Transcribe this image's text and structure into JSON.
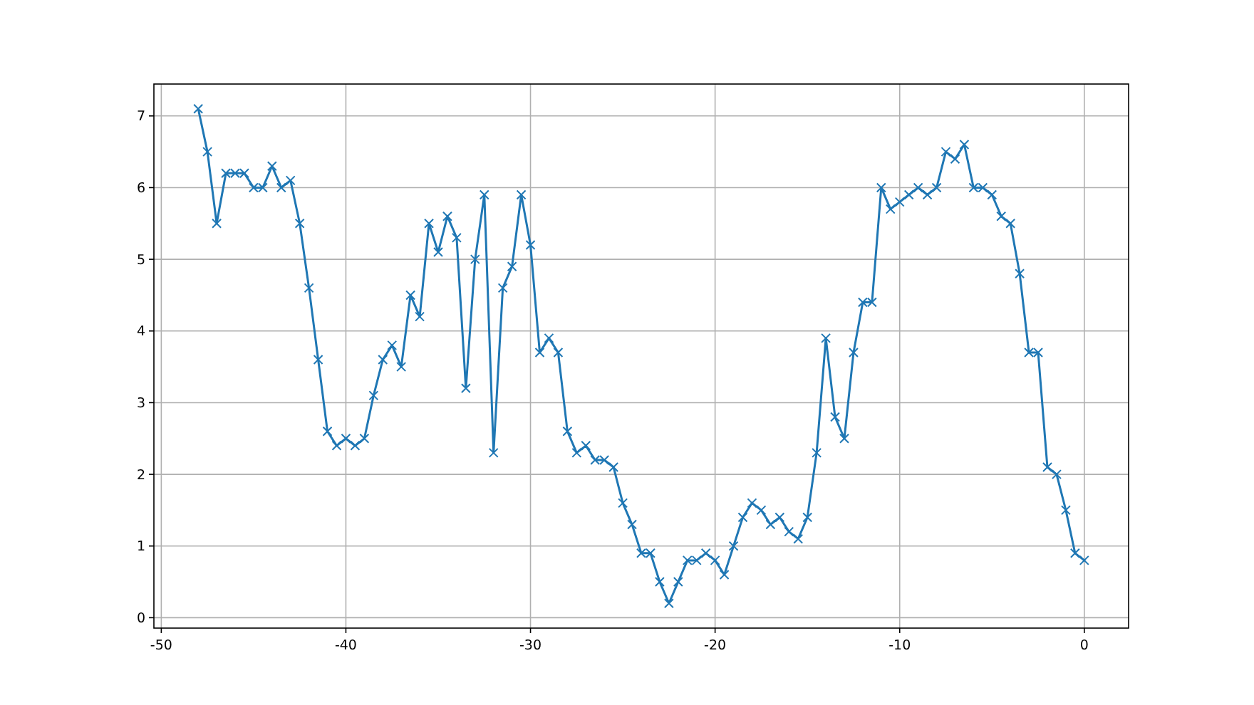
{
  "chart_data": {
    "type": "line",
    "x": [
      -48,
      -47.5,
      -47,
      -46.5,
      -46,
      -45.5,
      -45,
      -44.5,
      -44,
      -43.5,
      -43,
      -42.5,
      -42,
      -41.5,
      -41,
      -40.5,
      -40,
      -39.5,
      -39,
      -38.5,
      -38,
      -37.5,
      -37,
      -36.5,
      -36,
      -35.5,
      -35,
      -34.5,
      -34,
      -33.5,
      -33,
      -32.5,
      -32,
      -31.5,
      -31,
      -30.5,
      -30,
      -29.5,
      -29,
      -28.5,
      -28,
      -27.5,
      -27,
      -26.5,
      -26,
      -25.5,
      -25,
      -24.5,
      -24,
      -23.5,
      -23,
      -22.5,
      -22,
      -21.5,
      -21,
      -20.5,
      -20,
      -19.5,
      -19,
      -18.5,
      -18,
      -17.5,
      -17,
      -16.5,
      -16,
      -15.5,
      -15,
      -14.5,
      -14,
      -13.5,
      -13,
      -12.5,
      -12,
      -11.5,
      -11,
      -10.5,
      -10,
      -9.5,
      -9,
      -8.5,
      -8,
      -7.5,
      -7,
      -6.5,
      -6,
      -5.5,
      -5,
      -4.5,
      -4,
      -3.5,
      -3,
      -2.5,
      -2,
      -1.5,
      -1,
      -0.5,
      0
    ],
    "series": [
      {
        "color": "#1f77b4",
        "values": [
          7.1,
          6.5,
          5.5,
          6.2,
          6.2,
          6.2,
          6.0,
          6.0,
          6.3,
          6.0,
          6.1,
          5.5,
          4.6,
          3.6,
          2.6,
          2.4,
          2.5,
          2.4,
          2.5,
          3.1,
          3.6,
          3.8,
          3.5,
          4.5,
          4.2,
          5.5,
          5.1,
          5.6,
          5.3,
          3.2,
          5.0,
          5.9,
          2.3,
          4.6,
          4.9,
          5.9,
          5.2,
          3.7,
          3.9,
          3.7,
          2.6,
          2.3,
          2.4,
          2.2,
          2.2,
          2.1,
          1.6,
          1.3,
          0.9,
          0.9,
          0.5,
          0.2,
          0.5,
          0.8,
          0.8,
          0.9,
          0.8,
          0.6,
          1.0,
          1.4,
          1.6,
          1.5,
          1.3,
          1.4,
          1.2,
          1.1,
          1.4,
          2.3,
          3.9,
          2.8,
          2.5,
          3.7,
          4.4,
          4.4,
          6.0,
          5.7,
          5.8,
          5.9,
          6.0,
          5.9,
          6.0,
          6.5,
          6.4,
          6.6,
          6.0,
          6.0,
          5.9,
          5.6,
          5.5,
          4.8,
          3.7,
          3.7,
          2.1,
          2.0,
          1.5,
          0.9,
          0.8
        ]
      }
    ],
    "xlim": [
      -50.4,
      2.4
    ],
    "ylim": [
      -0.145,
      7.445
    ],
    "xticks": [
      -50,
      -40,
      -30,
      -20,
      -10,
      0
    ],
    "yticks": [
      0,
      1,
      2,
      3,
      4,
      5,
      6,
      7
    ],
    "grid": true,
    "marker": "cross",
    "line_style": "solid"
  }
}
